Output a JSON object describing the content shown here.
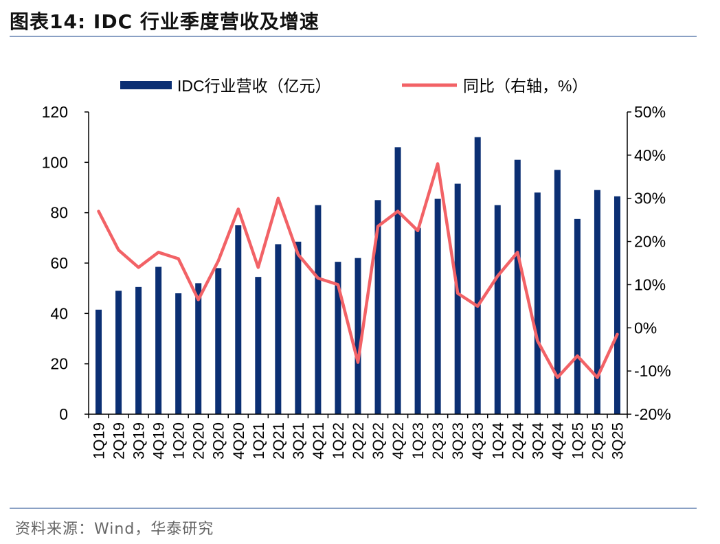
{
  "page": {
    "title": "图表14:  IDC 行业季度营收及增速",
    "source": "资料来源：Wind，华泰研究"
  },
  "chart_data": {
    "type": "bar",
    "categories": [
      "1Q19",
      "2Q19",
      "3Q19",
      "4Q19",
      "1Q20",
      "2Q20",
      "3Q20",
      "4Q20",
      "1Q21",
      "2Q21",
      "3Q21",
      "4Q21",
      "1Q22",
      "2Q22",
      "3Q22",
      "4Q22",
      "1Q23",
      "2Q23",
      "3Q23",
      "4Q23",
      "1Q24",
      "2Q24",
      "3Q24",
      "4Q24",
      "1Q25",
      "2Q25",
      "3Q25"
    ],
    "series": [
      {
        "name": "IDC行业营收（亿元）",
        "type": "bar",
        "axis": "left",
        "color": "#0b2f73",
        "values": [
          41.5,
          49,
          50.5,
          58.5,
          48,
          52,
          58,
          75,
          54.5,
          67.5,
          68.5,
          83,
          60.5,
          62,
          85,
          106,
          74,
          85.5,
          91.5,
          110,
          83,
          101,
          88,
          97,
          77.5,
          89,
          86.5
        ]
      },
      {
        "name": "同比（右轴，%）",
        "type": "line",
        "axis": "right",
        "color": "#f26266",
        "values": [
          27,
          18,
          14,
          17.5,
          16,
          6.5,
          15.5,
          27.5,
          14,
          30,
          17,
          11.5,
          10,
          -8,
          23.5,
          27,
          22.5,
          38,
          8,
          5,
          12,
          17.5,
          -3,
          -11.5,
          -6.5,
          -11.5,
          -1.5
        ]
      }
    ],
    "y_left": {
      "min": 0,
      "max": 120,
      "ticks": [
        "0",
        "20",
        "40",
        "60",
        "80",
        "100",
        "120"
      ]
    },
    "y_right": {
      "min": -20,
      "max": 50,
      "ticks": [
        "-20%",
        "-10%",
        "0%",
        "10%",
        "20%",
        "30%",
        "40%",
        "50%"
      ]
    },
    "legend_position": "top",
    "grid": false
  }
}
